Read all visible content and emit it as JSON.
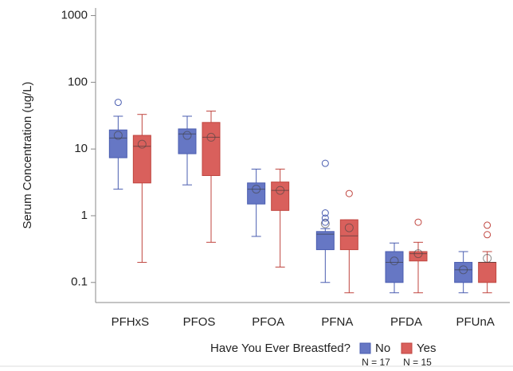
{
  "chart_data": {
    "type": "box",
    "y_label": "Serum Concentration (ug/L)",
    "categories": [
      "PFHxS",
      "PFOS",
      "PFOA",
      "PFNA",
      "PFDA",
      "PFUnA"
    ],
    "log": true,
    "ylim": [
      0.05,
      1300
    ],
    "yticks": [
      1000,
      100,
      10,
      1,
      0.1
    ],
    "legend_title": "Have You Ever Breastfed?",
    "series": [
      {
        "name": "No",
        "n_label": "N = 17",
        "color": "#6677c4",
        "stroke": "#4a5db0",
        "whisker_high": [
          31,
          31,
          5,
          0.64,
          0.39,
          0.29
        ],
        "q3": [
          19.3,
          20,
          3.1,
          0.58,
          0.29,
          0.2
        ],
        "median": [
          14.6,
          16.8,
          2.5,
          0.53,
          0.2,
          0.155
        ],
        "q1": [
          7.4,
          8.5,
          1.5,
          0.31,
          0.1,
          0.1
        ],
        "whisker_low": [
          2.5,
          2.9,
          0.49,
          0.1,
          0.07,
          0.07
        ],
        "mean": [
          16,
          16,
          2.5,
          0.76,
          0.21,
          0.155
        ],
        "outliers": [
          [
            50
          ],
          [],
          [],
          [
            6.1,
            1.1,
            0.92,
            0.8
          ],
          [],
          []
        ]
      },
      {
        "name": "Yes",
        "n_label": "N = 15",
        "color": "#d9605c",
        "stroke": "#c0453f",
        "whisker_high": [
          33,
          37,
          5,
          0.87,
          0.4,
          0.29
        ],
        "q3": [
          16,
          25,
          3.2,
          0.87,
          0.29,
          0.2
        ],
        "median": [
          11,
          15,
          2.4,
          0.5,
          0.27,
          0.2
        ],
        "q1": [
          3.1,
          4,
          1.2,
          0.31,
          0.21,
          0.1
        ],
        "whisker_low": [
          0.2,
          0.4,
          0.17,
          0.07,
          0.07,
          0.07
        ],
        "mean": [
          11.8,
          15,
          2.4,
          0.66,
          0.27,
          0.23
        ],
        "outliers": [
          [],
          [],
          [],
          [
            2.15
          ],
          [
            0.8
          ],
          [
            0.72,
            0.52
          ]
        ]
      }
    ]
  }
}
